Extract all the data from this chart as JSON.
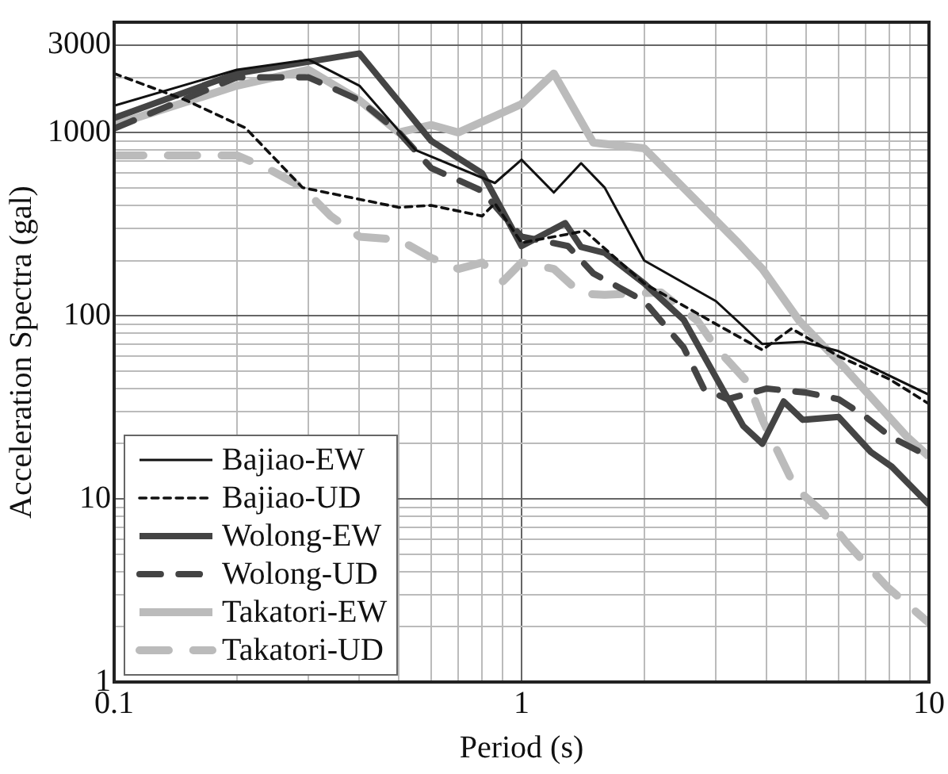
{
  "chart_data": {
    "type": "line",
    "xlabel": "Period (s)",
    "ylabel": "Acceleration Spectra (gal)",
    "log": "xy",
    "grid": true,
    "legend": "bottom left",
    "marker": "none",
    "xlim": [
      0.1,
      10
    ],
    "ylim": [
      1,
      4000
    ],
    "xticks": [
      0.1,
      {
        "value": 0.2,
        "label": null
      },
      {
        "value": 0.3,
        "label": null
      },
      {
        "value": 0.4,
        "label": null
      },
      {
        "value": 0.5,
        "label": null
      },
      {
        "value": 0.6,
        "label": null
      },
      {
        "value": 0.7,
        "label": null
      },
      {
        "value": 0.8,
        "label": null
      },
      {
        "value": 0.9,
        "label": null
      },
      1,
      {
        "value": 2,
        "label": null
      },
      {
        "value": 3,
        "label": null
      },
      {
        "value": 4,
        "label": null
      },
      {
        "value": 5,
        "label": null
      },
      {
        "value": 6,
        "label": null
      },
      {
        "value": 7,
        "label": null
      },
      {
        "value": 8,
        "label": null
      },
      {
        "value": 9,
        "label": null
      },
      10
    ],
    "yticks": [
      1,
      {
        "value": 2,
        "label": null
      },
      {
        "value": 3,
        "label": null
      },
      {
        "value": 4,
        "label": null
      },
      {
        "value": 5,
        "label": null
      },
      {
        "value": 6,
        "label": null
      },
      {
        "value": 7,
        "label": null
      },
      {
        "value": 8,
        "label": null
      },
      {
        "value": 9,
        "label": null
      },
      10,
      {
        "value": 20,
        "label": null
      },
      {
        "value": 30,
        "label": null
      },
      {
        "value": 40,
        "label": null
      },
      {
        "value": 50,
        "label": null
      },
      {
        "value": 60,
        "label": null
      },
      {
        "value": 70,
        "label": null
      },
      {
        "value": 80,
        "label": null
      },
      {
        "value": 90,
        "label": null
      },
      100,
      {
        "value": 200,
        "label": null
      },
      {
        "value": 300,
        "label": null
      },
      {
        "value": 400,
        "label": null
      },
      {
        "value": 500,
        "label": null
      },
      {
        "value": 600,
        "label": null
      },
      {
        "value": 700,
        "label": null
      },
      {
        "value": 800,
        "label": null
      },
      {
        "value": 900,
        "label": null
      },
      1000,
      {
        "value": 2000,
        "label": null
      },
      3000
    ],
    "series": [
      {
        "name": "Bajiao-EW",
        "color": "#111111",
        "line_style": "solid",
        "x": [
          0.1,
          0.2,
          0.3,
          0.4,
          0.55,
          0.86,
          1.0,
          1.2,
          1.4,
          1.6,
          2.0,
          3.0,
          3.9,
          4.9,
          6.0,
          10
        ],
        "values": [
          1400,
          2200,
          2500,
          1800,
          800,
          530,
          710,
          470,
          680,
          500,
          200,
          120,
          70,
          72,
          64,
          37
        ]
      },
      {
        "name": "Bajiao-UD",
        "color": "#111111",
        "line_style": "dashed",
        "x": [
          0.1,
          0.15,
          0.21,
          0.29,
          0.5,
          0.6,
          0.8,
          0.86,
          1.0,
          1.43,
          2.0,
          3.0,
          3.9,
          4.6,
          6.0,
          8.0,
          10
        ],
        "values": [
          2100,
          1500,
          1060,
          500,
          390,
          400,
          350,
          410,
          250,
          290,
          150,
          90,
          65,
          85,
          60,
          45,
          33
        ]
      },
      {
        "name": "Wolong-EW",
        "color": "#444444",
        "line_style": "solid",
        "x": [
          0.1,
          0.2,
          0.4,
          0.6,
          0.8,
          1.0,
          1.28,
          1.4,
          1.6,
          2.0,
          2.5,
          3.5,
          3.9,
          4.4,
          4.9,
          6.0,
          7.2,
          8.1,
          10
        ],
        "values": [
          1200,
          2100,
          2700,
          900,
          600,
          240,
          320,
          237,
          220,
          150,
          95,
          25,
          20,
          34,
          27,
          28,
          18,
          15,
          9.3
        ]
      },
      {
        "name": "Wolong-UD",
        "color": "#444444",
        "line_style": "dashed",
        "x": [
          0.1,
          0.2,
          0.3,
          0.4,
          0.5,
          0.6,
          0.8,
          1.0,
          1.3,
          1.5,
          2.0,
          2.5,
          2.8,
          3.2,
          4.0,
          5.0,
          6.0,
          7.0,
          8.0,
          10
        ],
        "values": [
          1050,
          2000,
          2000,
          1500,
          1000,
          640,
          480,
          270,
          240,
          170,
          120,
          67,
          40,
          35,
          40,
          38,
          35,
          28,
          22,
          17
        ]
      },
      {
        "name": "Takatori-EW",
        "color": "#bbbbbb",
        "line_style": "solid",
        "x": [
          0.1,
          0.2,
          0.3,
          0.4,
          0.5,
          0.6,
          0.7,
          1.0,
          1.2,
          1.5,
          2.0,
          3.4,
          3.9,
          4.8,
          6.2,
          8.8,
          10
        ],
        "values": [
          1100,
          1800,
          2200,
          1500,
          1000,
          1100,
          1000,
          1430,
          2100,
          880,
          820,
          250,
          180,
          94,
          52,
          22,
          17
        ]
      },
      {
        "name": "Takatori-UD",
        "color": "#bbbbbb",
        "line_style": "dashed",
        "x": [
          0.1,
          0.2,
          0.24,
          0.29,
          0.34,
          0.4,
          0.5,
          0.6,
          0.7,
          0.8,
          0.9,
          1.0,
          1.2,
          1.4,
          1.6,
          2.2,
          2.7,
          3.0,
          3.6,
          3.9,
          4.7,
          5.5,
          6.3,
          7.9,
          10
        ],
        "values": [
          750,
          750,
          630,
          500,
          350,
          270,
          260,
          207,
          180,
          195,
          154,
          195,
          180,
          132,
          130,
          134,
          94,
          67,
          43,
          27,
          11.5,
          8.4,
          5.7,
          3.3,
          2.1
        ]
      }
    ]
  }
}
